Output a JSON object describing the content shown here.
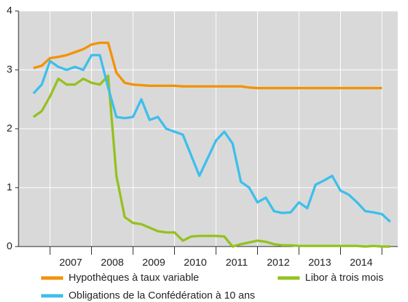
{
  "chart_data": {
    "type": "line",
    "x": [
      2006.6,
      2006.8,
      2007.0,
      2007.2,
      2007.4,
      2007.6,
      2007.8,
      2008.0,
      2008.2,
      2008.4,
      2008.6,
      2008.8,
      2009.0,
      2009.2,
      2009.4,
      2009.6,
      2009.8,
      2010.0,
      2010.2,
      2010.4,
      2010.6,
      2010.8,
      2011.0,
      2011.2,
      2011.4,
      2011.6,
      2011.8,
      2012.0,
      2012.2,
      2012.4,
      2012.6,
      2012.8,
      2013.0,
      2013.2,
      2013.4,
      2013.6,
      2013.8,
      2014.0,
      2014.2,
      2014.4,
      2014.6,
      2014.8,
      2015.0,
      2015.2
    ],
    "series": [
      {
        "name": "Hypothèques à taux variable",
        "color": "#f39200",
        "values": [
          3.03,
          3.07,
          3.2,
          3.22,
          3.25,
          3.3,
          3.35,
          3.43,
          3.46,
          3.46,
          2.95,
          2.78,
          2.75,
          2.74,
          2.73,
          2.73,
          2.73,
          2.73,
          2.72,
          2.72,
          2.72,
          2.72,
          2.72,
          2.72,
          2.72,
          2.72,
          2.7,
          2.69,
          2.69,
          2.69,
          2.69,
          2.69,
          2.69,
          2.69,
          2.69,
          2.69,
          2.69,
          2.69,
          2.69,
          2.69,
          2.69,
          2.69,
          2.69,
          null
        ]
      },
      {
        "name": "Libor à trois mois",
        "color": "#95c11f",
        "values": [
          2.2,
          2.3,
          2.55,
          2.85,
          2.75,
          2.75,
          2.85,
          2.78,
          2.75,
          2.9,
          1.2,
          0.5,
          0.4,
          0.38,
          0.32,
          0.26,
          0.24,
          0.24,
          0.1,
          0.17,
          0.18,
          0.18,
          0.18,
          0.17,
          0.0,
          0.04,
          0.07,
          0.1,
          0.08,
          0.04,
          0.02,
          0.02,
          0.01,
          0.01,
          0.01,
          0.01,
          0.01,
          0.01,
          0.01,
          0.01,
          0.0,
          0.01,
          0.0,
          0.0
        ]
      },
      {
        "name": "Obligations de la Confédération à 10 ans",
        "color": "#3dbfeb",
        "values": [
          2.6,
          2.75,
          3.15,
          3.05,
          3.0,
          3.05,
          3.0,
          3.25,
          3.25,
          2.7,
          2.2,
          2.18,
          2.2,
          2.5,
          2.15,
          2.2,
          2.0,
          1.95,
          1.9,
          1.55,
          1.2,
          1.5,
          1.8,
          1.95,
          1.75,
          1.1,
          1.0,
          0.75,
          0.83,
          0.6,
          0.57,
          0.58,
          0.75,
          0.65,
          1.05,
          1.12,
          1.2,
          0.95,
          0.88,
          0.75,
          0.6,
          0.58,
          0.55,
          0.42
        ]
      }
    ],
    "xlim": [
      2006.24,
      2015.38
    ],
    "xgrid": [
      2007,
      2008,
      2009,
      2010,
      2011,
      2012,
      2013,
      2014,
      2015
    ],
    "xticks": [
      {
        "value": 2007.5,
        "label": "2007"
      },
      {
        "value": 2008.5,
        "label": "2008"
      },
      {
        "value": 2009.5,
        "label": "2009"
      },
      {
        "value": 2010.5,
        "label": "2010"
      },
      {
        "value": 2011.5,
        "label": "2011"
      },
      {
        "value": 2012.5,
        "label": "2012"
      },
      {
        "value": 2013.5,
        "label": "2013"
      },
      {
        "value": 2014.5,
        "label": "2014"
      }
    ],
    "ylim": [
      0,
      4
    ],
    "yticks": [
      0,
      1,
      2,
      3,
      4
    ],
    "grid": true
  }
}
